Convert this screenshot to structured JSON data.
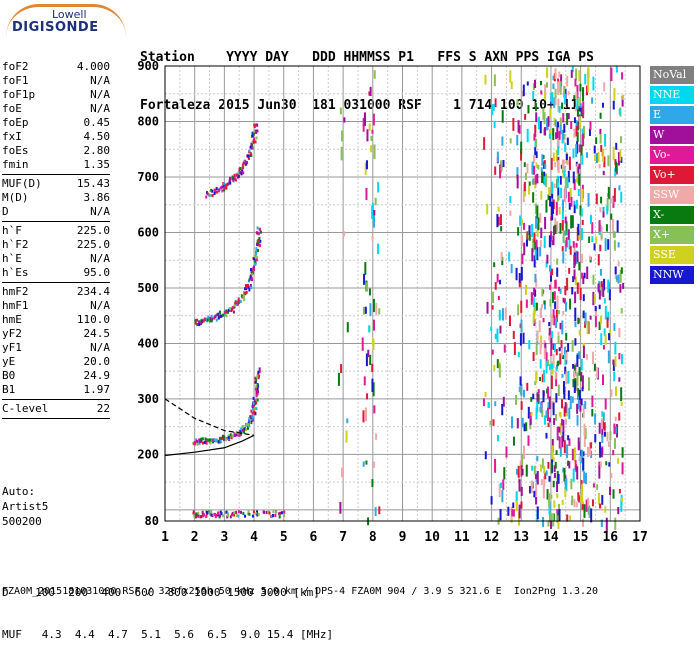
{
  "logo": {
    "top": "Lowell",
    "main": "DIGISONDE"
  },
  "header": {
    "line1": "Station    YYYY DAY   DDD HHMMSS P1   FFS S AXN PPS IGA PS",
    "line2": "Fortaleza 2015 Jun30  181 031000 RSF    1 714 100 10+ 11"
  },
  "params": [
    {
      "k": "foF2",
      "v": "4.000"
    },
    {
      "k": "foF1",
      "v": "N/A"
    },
    {
      "k": "foF1p",
      "v": "N/A"
    },
    {
      "k": "foE",
      "v": "N/A"
    },
    {
      "k": "foEp",
      "v": "0.45"
    },
    {
      "k": "fxI",
      "v": "4.50"
    },
    {
      "k": "foEs",
      "v": "2.80"
    },
    {
      "k": "fmin",
      "v": "1.35"
    },
    {
      "sep": true
    },
    {
      "k": "MUF(D)",
      "v": "15.43"
    },
    {
      "k": "M(D)",
      "v": "3.86"
    },
    {
      "k": "D",
      "v": "N/A"
    },
    {
      "sep": true
    },
    {
      "k": "h`F",
      "v": "225.0"
    },
    {
      "k": "h`F2",
      "v": "225.0"
    },
    {
      "k": "h`E",
      "v": "N/A"
    },
    {
      "k": "h`Es",
      "v": "95.0"
    },
    {
      "sep": true
    },
    {
      "k": "hmF2",
      "v": "234.4"
    },
    {
      "k": "hmF1",
      "v": "N/A"
    },
    {
      "k": "hmE",
      "v": "110.0"
    },
    {
      "k": "yF2",
      "v": "24.5"
    },
    {
      "k": "yF1",
      "v": "N/A"
    },
    {
      "k": "yE",
      "v": "20.0"
    },
    {
      "k": "B0",
      "v": "24.9"
    },
    {
      "k": "B1",
      "v": "1.97"
    },
    {
      "sep": true
    },
    {
      "k": "C-level",
      "v": "22"
    },
    {
      "sep": true
    }
  ],
  "auto": {
    "l1": "Auto:",
    "l2": "Artist5",
    "l3": "500200"
  },
  "legend": [
    {
      "label": "NoVal",
      "color": "#808080"
    },
    {
      "label": "NNE",
      "color": "#00d8f0"
    },
    {
      "label": "E",
      "color": "#30a8e8"
    },
    {
      "label": "W",
      "color": "#a0109a"
    },
    {
      "label": "Vo-",
      "color": "#e0189a"
    },
    {
      "label": "Vo+",
      "color": "#e01838"
    },
    {
      "label": "SSW",
      "color": "#f0a8a8"
    },
    {
      "label": "X-",
      "color": "#087a10"
    },
    {
      "label": "X+",
      "color": "#88c058"
    },
    {
      "label": "SSE",
      "color": "#d0d020"
    },
    {
      "label": "NNW",
      "color": "#1818d0"
    }
  ],
  "dmuf": {
    "line1": "D    100  200  400  600  800 1000 1500 3000 [km]",
    "line2": "MUF   4.3  4.4  4.7  5.1  5.6  6.5  9.0 15.4 [MHz]"
  },
  "footer": "FZA0M_2015181031000.RSF / 320fx256h 50 kHz 5.0 km / DPS-4 FZA0M 904 / 3.9 S 321.6 E  Ion2Png 1.3.20",
  "chart_data": {
    "type": "scatter",
    "title": "",
    "xlabel": "",
    "ylabel": "",
    "xlim": [
      1,
      17
    ],
    "ylim": [
      80,
      900
    ],
    "x_ticks": [
      "1",
      "2",
      "3",
      "4",
      "5",
      "6",
      "7",
      "8",
      "9",
      "10",
      "11",
      "12",
      "13",
      "14",
      "15",
      "16",
      "17"
    ],
    "y_ticks": [
      "80",
      "200",
      "300",
      "400",
      "500",
      "600",
      "700",
      "800",
      "900"
    ],
    "grid": true,
    "traces": [
      {
        "name": "F2 trace 1",
        "points": [
          [
            1.9,
            225
          ],
          [
            2.2,
            226
          ],
          [
            2.6,
            228
          ],
          [
            3.0,
            232
          ],
          [
            3.4,
            238
          ],
          [
            3.7,
            250
          ],
          [
            3.9,
            268
          ],
          [
            4.0,
            290
          ],
          [
            4.05,
            320
          ],
          [
            4.1,
            355
          ]
        ]
      },
      {
        "name": "F2 trace 2",
        "points": [
          [
            2.0,
            440
          ],
          [
            2.4,
            445
          ],
          [
            2.8,
            452
          ],
          [
            3.2,
            462
          ],
          [
            3.5,
            480
          ],
          [
            3.8,
            505
          ],
          [
            3.95,
            540
          ],
          [
            4.1,
            580
          ],
          [
            4.15,
            610
          ]
        ]
      },
      {
        "name": "F2 trace 3",
        "points": [
          [
            2.4,
            670
          ],
          [
            2.8,
            680
          ],
          [
            3.2,
            695
          ],
          [
            3.5,
            712
          ],
          [
            3.75,
            735
          ],
          [
            3.95,
            765
          ],
          [
            4.05,
            800
          ]
        ]
      },
      {
        "name": "Es trace",
        "points": [
          [
            1.9,
            95
          ],
          [
            2.3,
            95
          ],
          [
            2.8,
            95
          ],
          [
            3.5,
            95
          ],
          [
            4.5,
            95
          ],
          [
            5.0,
            95
          ]
        ]
      }
    ],
    "model_profile": [
      [
        1.0,
        300
      ],
      [
        2.0,
        265
      ],
      [
        3.0,
        243
      ],
      [
        3.6,
        238
      ],
      [
        4.0,
        234.4
      ],
      [
        3.6,
        224
      ],
      [
        3.0,
        212
      ],
      [
        2.0,
        204
      ],
      [
        1.0,
        198
      ]
    ]
  }
}
